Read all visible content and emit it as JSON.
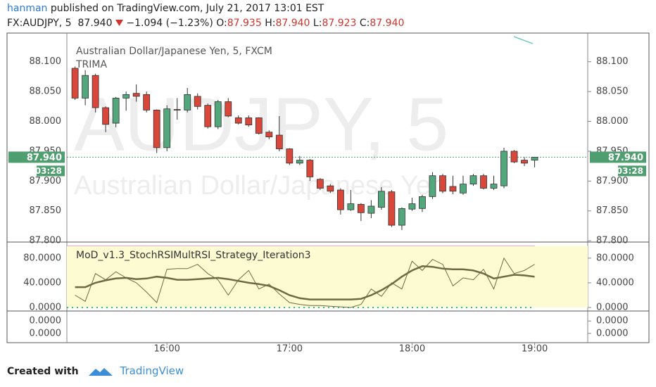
{
  "header": {
    "author": "hanman",
    "published": "published on TradingView.com, July 21, 2017 13:01 EST",
    "symbol": "FX:AUDJPY, 5",
    "last": "87.940",
    "change": "−1.094 (−1.23%)",
    "open_label": "O:",
    "open": "87.935",
    "high_label": "H:",
    "high": "87.940",
    "low_label": "L:",
    "low": "87.923",
    "close_label": "C:",
    "close": "87.940"
  },
  "chart_data": [
    {
      "type": "candlestick",
      "title": "Australian Dollar/Japanese Yen, 5, FXCM",
      "indicator": "TRIMA",
      "watermark": "AUDJPY, 5",
      "watermark_subtitle": "Australian Dollar/Japanese Yen",
      "x": [
        915,
        920,
        925,
        930,
        935,
        940,
        945,
        950,
        955,
        960,
        965,
        970,
        975,
        980,
        985,
        990,
        995,
        1000,
        1005,
        1010,
        1015,
        1020,
        1025,
        1030,
        1035,
        1040,
        1045,
        1050,
        1055,
        1060,
        1065,
        1070,
        1075,
        1080,
        1085,
        1090,
        1095,
        1100,
        1105,
        1110,
        1115,
        1120,
        1125,
        1130,
        1135,
        1140
      ],
      "open": [
        88.089,
        88.039,
        88.077,
        88.023,
        87.997,
        88.039,
        88.047,
        88.045,
        88.019,
        87.956,
        88.02,
        88.019,
        88.042,
        88.027,
        87.991,
        88.033,
        88.006,
        88.006,
        88.006,
        87.982,
        87.977,
        87.954,
        87.93,
        87.935,
        87.903,
        87.892,
        87.885,
        87.852,
        87.861,
        87.846,
        87.856,
        87.882,
        87.826,
        87.853,
        87.854,
        87.874,
        87.909,
        87.891,
        87.88,
        87.895,
        87.909,
        87.888,
        87.892,
        87.95,
        87.935,
        87.935
      ],
      "high": [
        88.092,
        88.086,
        88.08,
        88.025,
        88.041,
        88.05,
        88.062,
        88.05,
        88.02,
        88.027,
        88.039,
        88.056,
        88.047,
        88.03,
        88.036,
        88.039,
        88.01,
        88.01,
        88.007,
        87.985,
        88.009,
        87.955,
        87.942,
        87.937,
        87.905,
        87.895,
        87.888,
        87.885,
        87.863,
        87.868,
        87.89,
        87.885,
        87.856,
        87.872,
        87.877,
        87.915,
        87.912,
        87.909,
        87.909,
        87.912,
        87.912,
        87.909,
        87.956,
        87.952,
        87.94,
        87.94
      ],
      "low": [
        88.036,
        88.027,
        88.015,
        87.982,
        87.99,
        88.018,
        88.033,
        88.015,
        87.947,
        87.95,
        88.003,
        88.015,
        88.02,
        87.988,
        87.987,
        88.007,
        87.995,
        87.991,
        87.978,
        87.97,
        87.95,
        87.927,
        87.927,
        87.9,
        87.885,
        87.88,
        87.844,
        87.85,
        87.833,
        87.838,
        87.852,
        87.823,
        87.818,
        87.85,
        87.848,
        87.87,
        87.88,
        87.878,
        87.877,
        87.892,
        87.886,
        87.885,
        87.888,
        87.93,
        87.925,
        87.923
      ],
      "close": [
        88.039,
        88.077,
        88.023,
        87.995,
        88.039,
        88.045,
        88.042,
        88.019,
        87.956,
        88.021,
        88.019,
        88.045,
        88.025,
        87.991,
        88.033,
        88.009,
        87.997,
        87.994,
        87.98,
        87.974,
        87.954,
        87.93,
        87.935,
        87.907,
        87.888,
        87.883,
        87.852,
        87.862,
        87.847,
        87.858,
        87.883,
        87.826,
        87.854,
        87.862,
        87.874,
        87.909,
        87.883,
        87.883,
        87.895,
        87.909,
        87.888,
        87.895,
        87.95,
        87.932,
        87.93,
        87.94
      ],
      "up_color": "#53a77c",
      "down_color": "#d9463a",
      "xlim": [
        911,
        1166
      ],
      "xticks": [
        {
          "value": 960,
          "label": "16:00"
        },
        {
          "value": 1020,
          "label": "17:00"
        },
        {
          "value": 1080,
          "label": "18:00"
        },
        {
          "value": 1140,
          "label": "19:00"
        }
      ],
      "ylim": [
        87.799,
        88.148
      ],
      "yticks": [
        {
          "value": 88.1,
          "label": "88.100"
        },
        {
          "value": 88.05,
          "label": "88.050"
        },
        {
          "value": 88,
          "label": "88.000"
        },
        {
          "value": 87.95,
          "label": "87.950"
        },
        {
          "value": 87.9,
          "label": "87.900"
        },
        {
          "value": 87.85,
          "label": "87.850"
        },
        {
          "value": 87.8,
          "label": "87.800"
        }
      ],
      "last_price": {
        "value": 87.94,
        "label": "87.940"
      },
      "countdown": "03:28",
      "last_color": "#4f9e6f"
    },
    {
      "type": "line",
      "title": "MoD_v1.3_StochRSIMultRSI_Strategy_Iteration3",
      "ylim": [
        -4.6,
        105
      ],
      "yticks": [
        {
          "value": 80,
          "label": "80.0000"
        },
        {
          "value": 40,
          "label": "40.0000"
        },
        {
          "value": 0,
          "label": "0.0000"
        }
      ],
      "band": [
        0,
        100
      ],
      "band_color": "#fdfbd2",
      "band_line_color": "#3cc07a",
      "series": [
        {
          "color": "#6f6a45",
          "line_width": 2.5,
          "values": [
            33,
            33,
            40,
            44,
            47,
            48,
            46,
            47,
            50,
            48,
            45,
            45,
            46,
            47,
            48,
            46,
            43,
            40,
            38,
            35,
            28,
            20,
            15,
            13,
            13,
            13,
            13,
            13,
            14,
            20,
            28,
            38,
            50,
            60,
            67,
            66,
            63,
            62,
            62,
            60,
            55,
            47,
            50,
            53,
            52,
            50
          ]
        },
        {
          "color": "#6f6a45",
          "line_width": 1,
          "values": [
            20,
            10,
            55,
            45,
            58,
            48,
            40,
            25,
            8,
            62,
            63,
            63,
            70,
            55,
            45,
            20,
            45,
            60,
            30,
            38,
            22,
            8,
            5,
            3,
            3,
            2,
            1,
            0,
            5,
            30,
            18,
            40,
            30,
            75,
            60,
            78,
            70,
            35,
            48,
            45,
            62,
            30,
            80,
            55,
            60,
            70
          ]
        }
      ]
    },
    {
      "type": "line",
      "ylim": [
        -5e-05,
        5e-05
      ],
      "yticks": [
        {
          "value": 2e-05,
          "label": "0.0000"
        },
        {
          "value": -2e-05,
          "label": "0.0000"
        }
      ],
      "series": []
    }
  ],
  "footer": {
    "created": "Created with",
    "brand": "TradingView"
  }
}
